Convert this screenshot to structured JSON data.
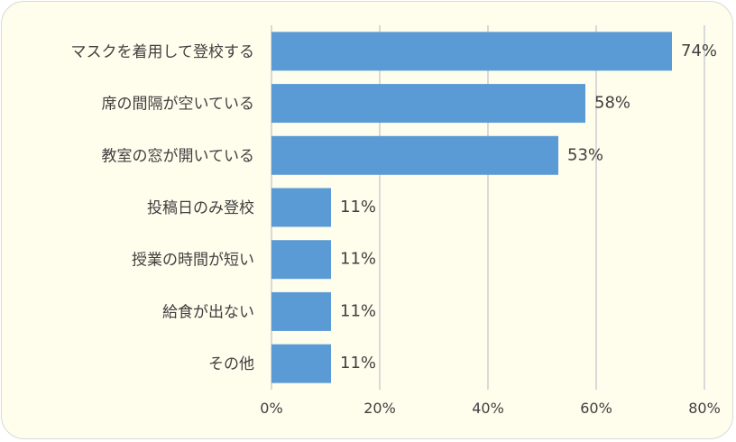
{
  "chart_data": {
    "type": "bar",
    "orientation": "horizontal",
    "categories": [
      "マスクを着用して登校する",
      "席の間隔が空いている",
      "教室の窓が開いている",
      "投稿日のみ登校",
      "授業の時間が短い",
      "給食が出ない",
      "その他"
    ],
    "values": [
      74,
      58,
      53,
      11,
      11,
      11,
      11
    ],
    "value_labels": [
      "74%",
      "58%",
      "53%",
      "11%",
      "11%",
      "11%",
      "11%"
    ],
    "xlim": [
      0,
      80
    ],
    "x_ticks": [
      "0%",
      "20%",
      "40%",
      "60%",
      "80%"
    ],
    "x_tick_values": [
      0,
      20,
      40,
      60,
      80
    ],
    "grid": "vertical",
    "legend": "none",
    "bar_color": "#5b9bd5",
    "background_color": "#fffdec"
  }
}
